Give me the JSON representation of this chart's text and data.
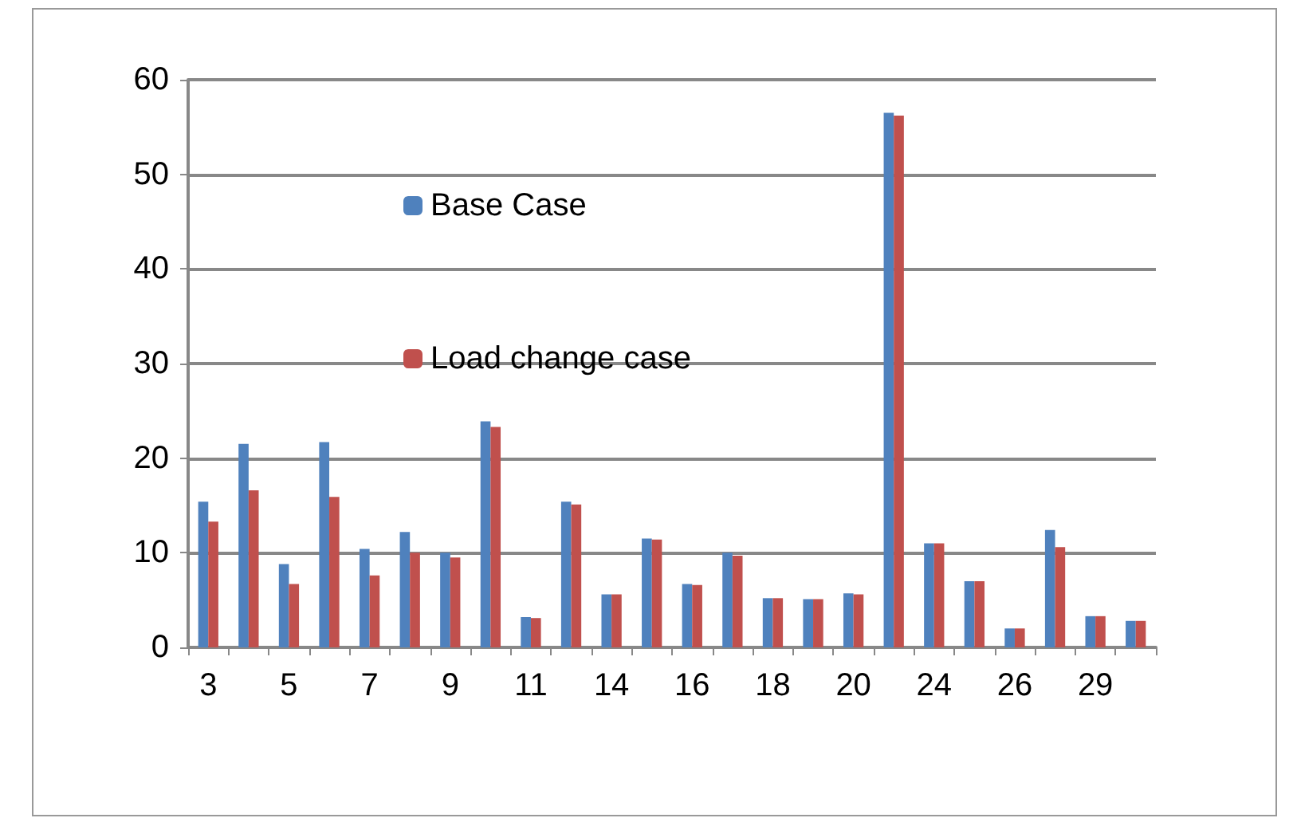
{
  "chart_data": {
    "type": "bar",
    "categories": [
      "3",
      null,
      "5",
      null,
      "7",
      null,
      "9",
      null,
      "11",
      null,
      "14",
      null,
      "16",
      null,
      "18",
      null,
      "20",
      null,
      "24",
      null,
      "26",
      null,
      "29",
      null
    ],
    "series": [
      {
        "name": "Base Case",
        "color": "#4f81bd",
        "values": [
          15.4,
          21.5,
          8.8,
          21.7,
          10.4,
          12.2,
          10,
          23.9,
          3.2,
          15.4,
          5.6,
          11.5,
          6.7,
          10,
          5.2,
          5.1,
          5.7,
          56.5,
          11,
          7,
          2,
          12.4,
          3.3,
          2.8
        ]
      },
      {
        "name": "Load change case",
        "color": "#c0504d",
        "values": [
          13.3,
          16.6,
          6.7,
          15.9,
          7.6,
          10,
          9.5,
          23.3,
          3.1,
          15.1,
          5.6,
          11.4,
          6.6,
          9.7,
          5.2,
          5.1,
          5.6,
          56.2,
          11,
          7,
          2,
          10.6,
          3.3,
          2.8
        ]
      }
    ],
    "ylim": [
      0,
      60
    ],
    "yticks": [
      0,
      10,
      20,
      30,
      40,
      50,
      60
    ],
    "grid": "y",
    "legend": "top left"
  }
}
